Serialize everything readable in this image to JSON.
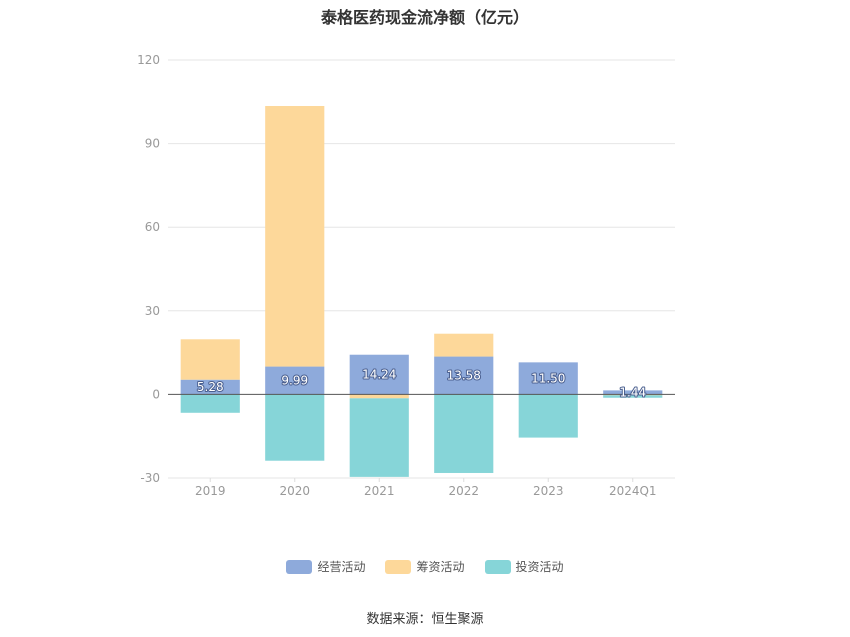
{
  "chart_data": {
    "type": "bar",
    "stacked": true,
    "title": "泰格医药现金流净额（亿元）",
    "categories": [
      "2019",
      "2020",
      "2021",
      "2022",
      "2023",
      "2024Q1"
    ],
    "series": [
      {
        "name": "经营活动",
        "color": "#8eaadb",
        "values": [
          5.28,
          9.99,
          14.24,
          13.58,
          11.5,
          1.44
        ],
        "labels": [
          "5.28",
          "9.99",
          "14.24",
          "13.58",
          "11.50",
          "1.44"
        ]
      },
      {
        "name": "筹资活动",
        "color": "#fdd89a",
        "values": [
          14.5,
          93.5,
          -1.4,
          8.2,
          0,
          -0.3
        ]
      },
      {
        "name": "投资活动",
        "color": "#86d5d8",
        "values": [
          -6.6,
          -23.8,
          -28.2,
          -28.2,
          -15.5,
          -0.9
        ]
      }
    ],
    "yticks": [
      -30,
      0,
      30,
      60,
      90,
      120
    ],
    "ylim": [
      -30,
      120
    ],
    "grid": true,
    "legend_position": "bottom"
  },
  "source": "数据来源：恒生聚源"
}
